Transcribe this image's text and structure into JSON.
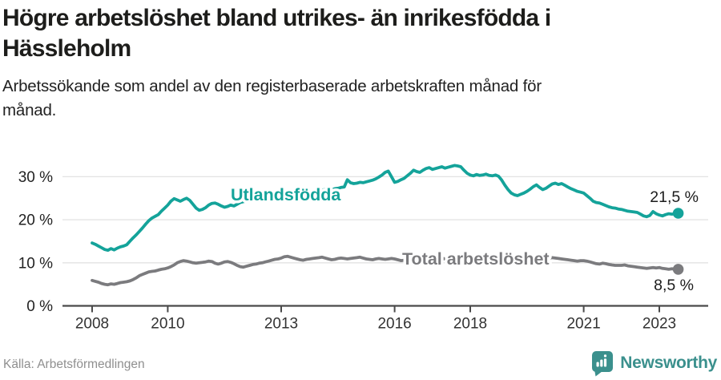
{
  "header": {
    "title_line1": "Högre arbetslöshet bland utrikes- än inrikesfödda i",
    "title_line2": "Hässleholm",
    "subtitle_line1": "Arbetssökande som andel av den registerbaserade arbetskraften månad för",
    "subtitle_line2": "månad."
  },
  "footer": {
    "source": "Källa: Arbetsförmedlingen",
    "brand_name": "Newsworthy",
    "brand_color": "#3b908d",
    "brand_icon": "bar-chart-speech-bubble-icon"
  },
  "chart_data": {
    "type": "line",
    "x_unit": "month",
    "x_start": "2008-01",
    "x_end": "2023-07",
    "x_ticks": [
      2008,
      2010,
      2013,
      2016,
      2018,
      2021,
      2023
    ],
    "y_ticks": [
      0,
      10,
      20,
      30
    ],
    "y_tick_labels": [
      "0 %",
      "10 %",
      "20 %",
      "30 %"
    ],
    "ylim": [
      0,
      34
    ],
    "grid": "horizontal",
    "legend_position": "inline-labels",
    "series": [
      {
        "name": "Utlandsfödda",
        "color": "#14a39a",
        "end_label": "21,5 %",
        "last_value": 21.5,
        "values": [
          14.6,
          14.3,
          13.9,
          13.5,
          13.1,
          12.9,
          13.3,
          13.0,
          13.4,
          13.7,
          13.9,
          14.2,
          15.0,
          15.8,
          16.5,
          17.3,
          18.1,
          19.0,
          19.8,
          20.4,
          20.8,
          21.2,
          22.0,
          22.7,
          23.4,
          24.3,
          24.9,
          24.6,
          24.3,
          24.7,
          25.0,
          24.5,
          23.6,
          22.7,
          22.2,
          22.4,
          22.8,
          23.4,
          23.8,
          23.9,
          23.6,
          23.2,
          22.9,
          23.1,
          23.4,
          23.2,
          23.6,
          24.0,
          24.2,
          24.4,
          24.6,
          24.5,
          24.7,
          24.9,
          25.0,
          25.2,
          25.1,
          25.3,
          25.4,
          25.6,
          25.7,
          25.8,
          26.0,
          25.9,
          26.1,
          26.2,
          26.1,
          26.3,
          26.4,
          26.5,
          26.6,
          26.7,
          26.8,
          26.9,
          27.0,
          27.1,
          27.0,
          27.2,
          27.3,
          27.5,
          27.6,
          29.3,
          28.6,
          28.4,
          28.5,
          28.7,
          28.6,
          28.8,
          29.0,
          29.2,
          29.5,
          29.9,
          30.4,
          31.0,
          31.3,
          30.0,
          28.7,
          28.9,
          29.3,
          29.6,
          30.2,
          30.8,
          31.5,
          31.2,
          31.0,
          31.5,
          31.9,
          32.1,
          31.7,
          31.9,
          32.1,
          32.3,
          32.0,
          32.2,
          32.4,
          32.6,
          32.5,
          32.3,
          31.5,
          30.8,
          30.4,
          30.2,
          30.5,
          30.3,
          30.4,
          30.6,
          30.3,
          30.2,
          30.4,
          30.1,
          29.2,
          28.0,
          27.0,
          26.2,
          25.8,
          25.6,
          25.9,
          26.2,
          26.6,
          27.1,
          27.7,
          28.1,
          27.5,
          27.0,
          27.3,
          27.8,
          28.3,
          28.5,
          28.2,
          28.4,
          28.0,
          27.6,
          27.2,
          26.9,
          26.6,
          26.4,
          26.2,
          25.6,
          25.0,
          24.3,
          24.0,
          23.9,
          23.6,
          23.3,
          23.0,
          22.8,
          22.7,
          22.5,
          22.4,
          22.2,
          22.0,
          21.9,
          21.8,
          21.7,
          21.3,
          20.9,
          20.7,
          21.0,
          21.9,
          21.4,
          21.1,
          20.9,
          21.2,
          21.4,
          21.3,
          21.4,
          21.5
        ]
      },
      {
        "name": "Total arbetslöshet",
        "color": "#7b7b7e",
        "end_label": "8,5 %",
        "last_value": 8.5,
        "values": [
          5.9,
          5.7,
          5.5,
          5.2,
          5.0,
          4.9,
          5.1,
          5.0,
          5.2,
          5.4,
          5.5,
          5.6,
          5.8,
          6.1,
          6.5,
          7.0,
          7.3,
          7.6,
          7.9,
          8.0,
          8.1,
          8.3,
          8.5,
          8.6,
          8.8,
          9.1,
          9.5,
          10.0,
          10.3,
          10.5,
          10.4,
          10.2,
          10.0,
          9.9,
          10.0,
          10.1,
          10.2,
          10.4,
          10.3,
          9.9,
          9.7,
          9.9,
          10.2,
          10.3,
          10.1,
          9.8,
          9.4,
          9.1,
          9.0,
          9.2,
          9.4,
          9.6,
          9.7,
          9.9,
          10.0,
          10.2,
          10.4,
          10.6,
          10.8,
          10.9,
          11.1,
          11.4,
          11.5,
          11.3,
          11.1,
          10.9,
          10.7,
          10.6,
          10.8,
          10.9,
          11.0,
          11.1,
          11.2,
          11.3,
          11.1,
          10.9,
          10.7,
          10.8,
          11.0,
          11.1,
          11.0,
          10.9,
          11.0,
          11.1,
          11.2,
          11.3,
          11.1,
          10.9,
          10.8,
          10.7,
          10.9,
          11.0,
          10.9,
          10.8,
          10.9,
          11.0,
          10.9,
          10.7,
          10.5,
          10.6,
          10.8,
          10.7,
          10.5,
          10.4,
          10.6,
          10.7,
          10.8,
          10.9,
          11.0,
          11.2,
          11.3,
          11.1,
          10.9,
          10.8,
          10.7,
          10.8,
          10.9,
          10.8,
          10.7,
          10.6,
          10.5,
          10.6,
          10.7,
          10.6,
          10.4,
          10.3,
          10.4,
          10.5,
          10.4,
          10.3,
          10.2,
          10.3,
          10.4,
          10.5,
          10.4,
          10.3,
          10.4,
          10.5,
          10.6,
          10.7,
          10.8,
          10.9,
          10.8,
          10.9,
          11.0,
          11.1,
          11.2,
          11.1,
          11.0,
          10.9,
          10.8,
          10.7,
          10.6,
          10.5,
          10.4,
          10.5,
          10.5,
          10.4,
          10.2,
          10.0,
          9.8,
          9.7,
          9.9,
          9.8,
          9.6,
          9.5,
          9.4,
          9.4,
          9.4,
          9.5,
          9.3,
          9.2,
          9.1,
          9.0,
          8.9,
          8.8,
          8.7,
          8.8,
          8.9,
          8.8,
          8.9,
          8.7,
          8.6,
          8.5,
          8.6,
          8.5,
          8.5
        ]
      }
    ]
  }
}
